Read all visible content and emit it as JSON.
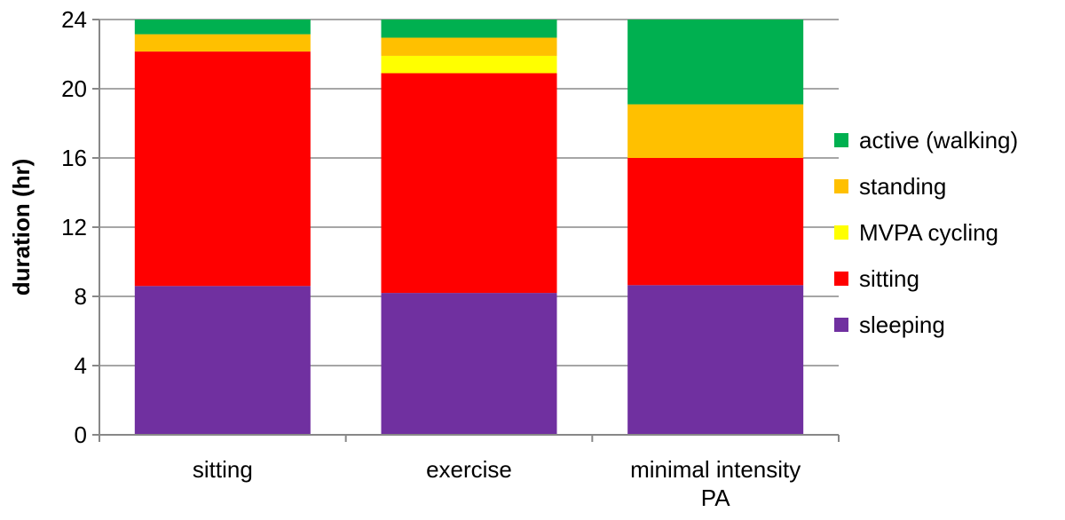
{
  "chart_data": {
    "type": "bar",
    "stacked": true,
    "title": "",
    "xlabel": "",
    "ylabel": "duration (hr)",
    "ylim": [
      0,
      24
    ],
    "yticks": [
      0,
      4,
      8,
      12,
      16,
      20,
      24
    ],
    "grid": true,
    "legend": "right",
    "categories": [
      [
        "sitting"
      ],
      [
        "exercise"
      ],
      [
        "minimal intensity",
        "PA"
      ]
    ],
    "series": [
      {
        "name": "sleeping",
        "color": "#7030a0",
        "values": [
          8.6,
          8.2,
          8.65
        ]
      },
      {
        "name": "sitting",
        "color": "#ff0000",
        "values": [
          13.55,
          12.7,
          7.35
        ]
      },
      {
        "name": "MVPA cycling",
        "color": "#ffff00",
        "values": [
          0,
          1.0,
          0
        ]
      },
      {
        "name": "standing",
        "color": "#ffc000",
        "values": [
          1.0,
          1.05,
          3.1
        ]
      },
      {
        "name": "active (walking)",
        "color": "#00b050",
        "values": [
          0.85,
          1.05,
          4.9
        ]
      }
    ],
    "legend_order": [
      4,
      3,
      2,
      1,
      0
    ]
  }
}
